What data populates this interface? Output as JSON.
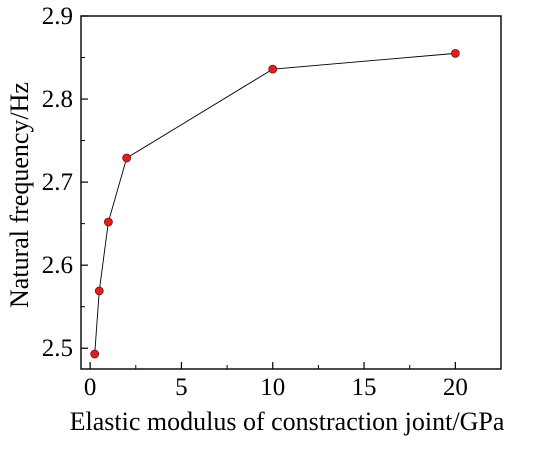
{
  "chart_data": {
    "type": "line",
    "title": "",
    "xlabel": "Elastic modulus of constraction joint/GPa",
    "ylabel": "Natural frequency/Hz",
    "xlim": [
      -0.5,
      22.5
    ],
    "ylim": [
      2.475,
      2.9
    ],
    "xticks": [
      0,
      5,
      10,
      15,
      20
    ],
    "yticks": [
      2.5,
      2.6,
      2.7,
      2.8,
      2.9
    ],
    "xtick_labels": [
      "0",
      "5",
      "10",
      "15",
      "20"
    ],
    "ytick_labels": [
      "2.5",
      "2.6",
      "2.7",
      "2.8",
      "2.9"
    ],
    "grid": false,
    "series": [
      {
        "x": [
          0.25,
          0.5,
          1,
          2,
          10,
          20
        ],
        "y": [
          2.493,
          2.569,
          2.652,
          2.729,
          2.836,
          2.855
        ],
        "line_color": "#000000",
        "marker_color": "#dd1f1f"
      }
    ]
  }
}
